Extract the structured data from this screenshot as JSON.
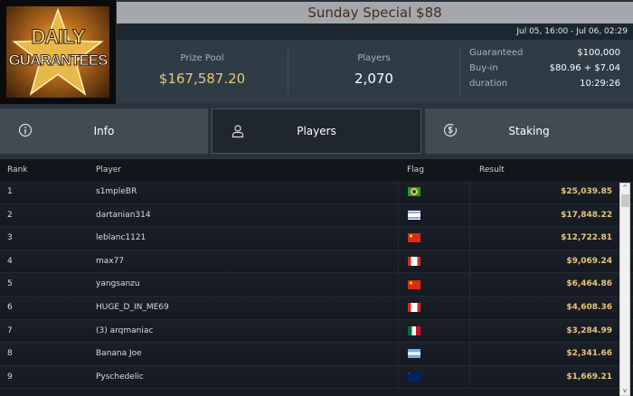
{
  "logo": {
    "line1": "DAILY",
    "line2": "GUARANTEES"
  },
  "header": {
    "title": "Sunday Special $88",
    "dates": "Jul 05, 16:00 - Jul 06, 02:29"
  },
  "stats": {
    "prize_pool_label": "Prize Pool",
    "prize_pool": "$167,587.20",
    "players_label": "Players",
    "players": "2,070",
    "details": [
      {
        "k": "Guaranteed",
        "v": "$100,000"
      },
      {
        "k": "Buy-in",
        "v": "$80.96 + $7.04"
      },
      {
        "k": "duration",
        "v": "10:29:26"
      }
    ]
  },
  "tabs": [
    {
      "label": "Info",
      "icon": "info-icon"
    },
    {
      "label": "Players",
      "icon": "user-icon",
      "active": true
    },
    {
      "label": "Staking",
      "icon": "dollar-circle-icon"
    }
  ],
  "table": {
    "headers": [
      "Rank",
      "Player",
      "Flag",
      "Result"
    ],
    "rows": [
      {
        "rank": "1",
        "player": "s1mpleBR",
        "flag": "BR",
        "result": "$25,039.85"
      },
      {
        "rank": "2",
        "player": "dartanian314",
        "flag": "IL",
        "result": "$17,848.22"
      },
      {
        "rank": "3",
        "player": "leblanc1121",
        "flag": "CN",
        "result": "$12,722.81"
      },
      {
        "rank": "4",
        "player": "max77",
        "flag": "CA",
        "result": "$9,069.24"
      },
      {
        "rank": "5",
        "player": "yangsanzu",
        "flag": "CN",
        "result": "$6,464.86"
      },
      {
        "rank": "6",
        "player": "HUGE_D_IN_ME69",
        "flag": "CA",
        "result": "$4,608.36"
      },
      {
        "rank": "7",
        "player": "(3) arqmaniac",
        "flag": "MX",
        "result": "$3,284.99"
      },
      {
        "rank": "8",
        "player": "Banana Joe",
        "flag": "AR",
        "result": "$2,341.66"
      },
      {
        "rank": "9",
        "player": "Pyschedelic",
        "flag": "NZ",
        "result": "$1,669.21"
      }
    ]
  },
  "colors": {
    "gold": "#e7c57a",
    "title_bar": "#a4a8ac"
  }
}
